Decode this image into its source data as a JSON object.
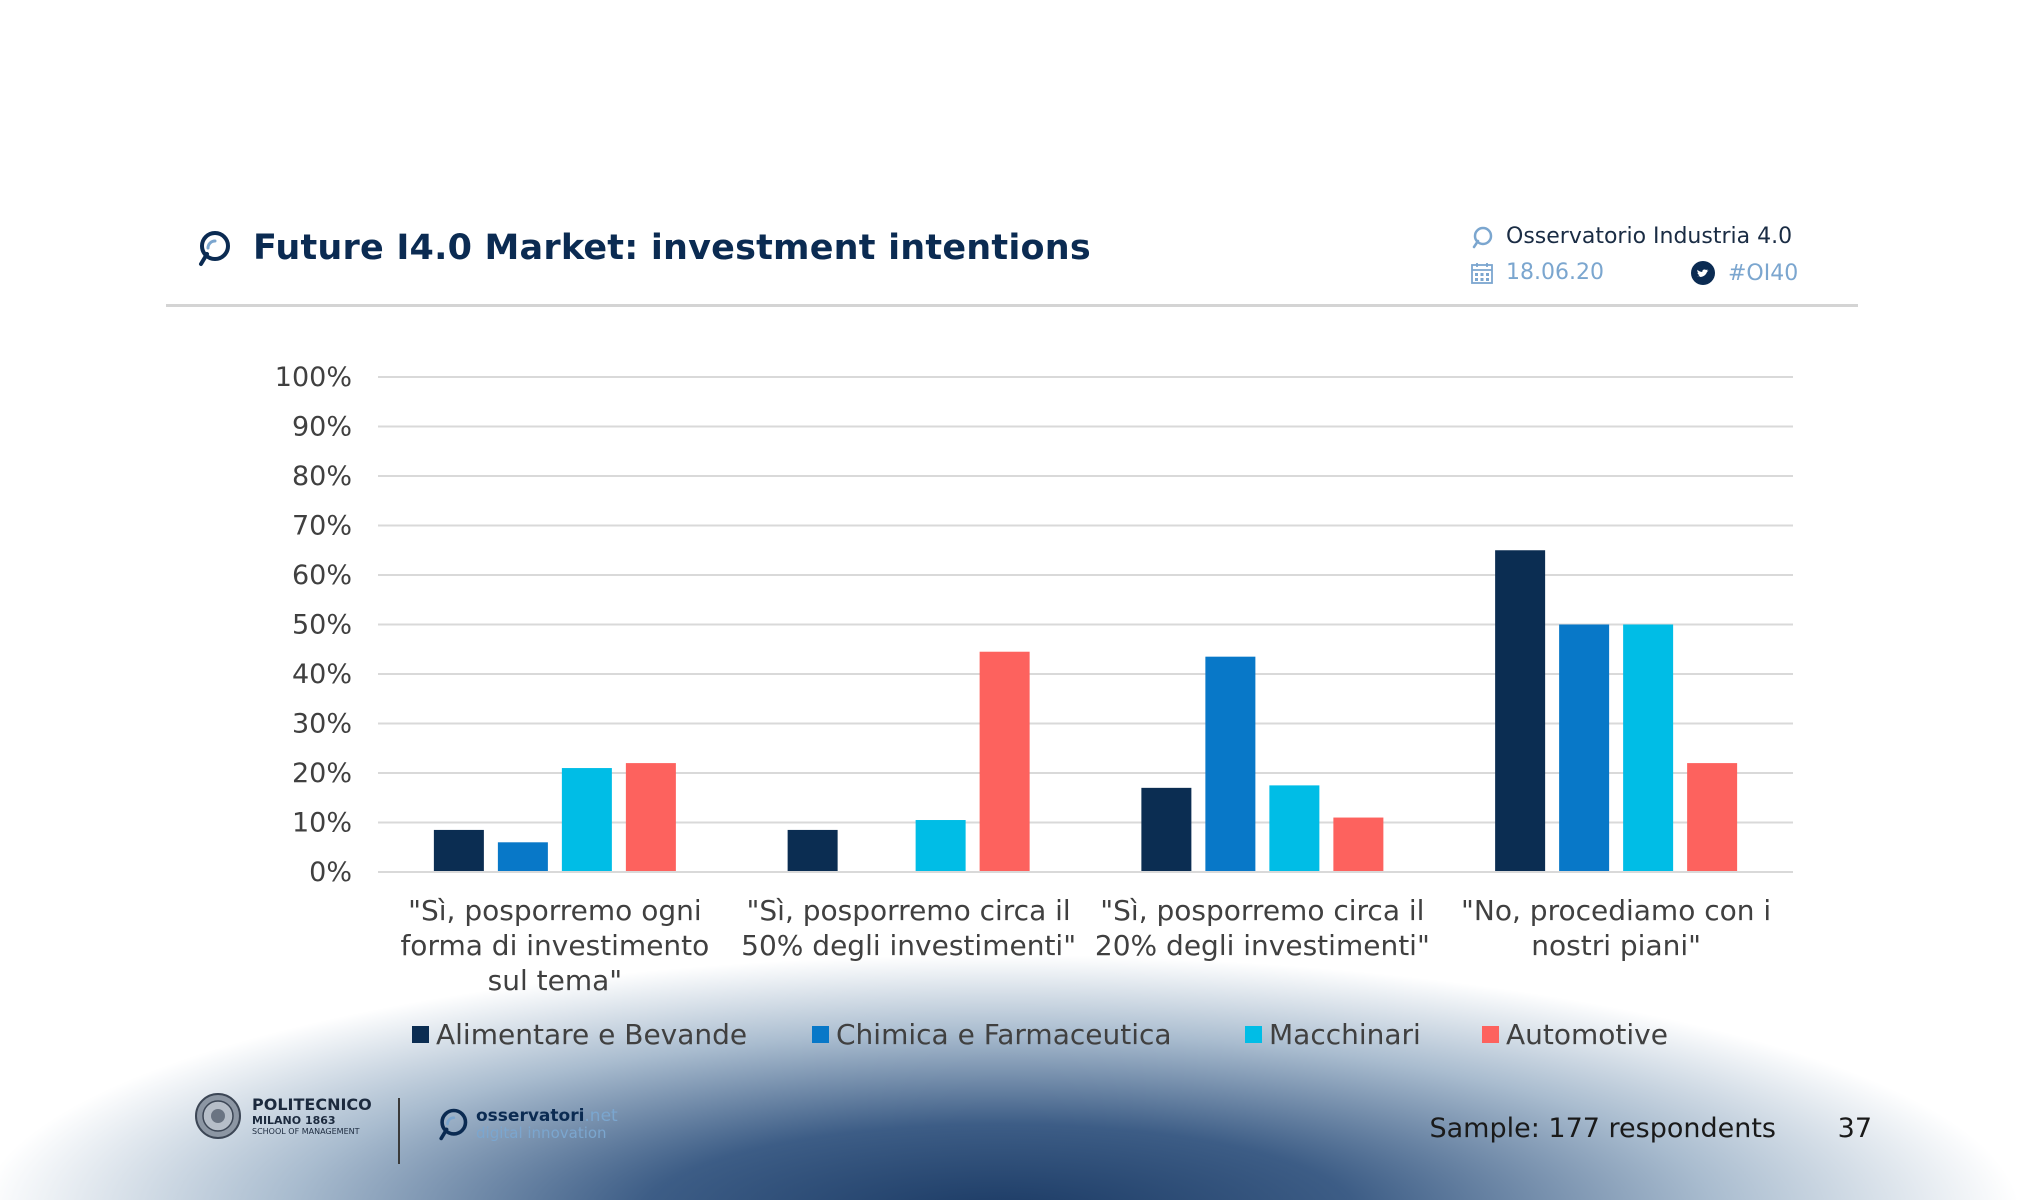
{
  "header": {
    "title": "Future I4.0 Market: investment intentions",
    "organization": "Osservatorio Industria 4.0",
    "date": "18.06.20",
    "hashtag": "#OI40"
  },
  "footer": {
    "school_name": "POLITECNICO",
    "school_city": "MILANO 1863",
    "school_dept": "SCHOOL OF MANAGEMENT",
    "osservatori_name": "osservatori",
    "osservatori_suffix": ".net",
    "osservatori_sub": "digital innovation",
    "sample": "Sample: 177 respondents",
    "page": "37"
  },
  "chart_data": {
    "type": "bar",
    "title": "",
    "xlabel": "",
    "ylabel": "",
    "ylim": [
      0,
      100
    ],
    "yticks": [
      "0%",
      "10%",
      "20%",
      "30%",
      "40%",
      "50%",
      "60%",
      "70%",
      "80%",
      "90%",
      "100%"
    ],
    "grid": true,
    "legend": "bottom",
    "categories": [
      [
        "\"Sì, posporremo ogni",
        "forma di investimento",
        "sul tema\""
      ],
      [
        "\"Sì, posporremo circa il",
        "50% degli investimenti\""
      ],
      [
        "\"Sì, posporremo circa il",
        "20% degli investimenti\""
      ],
      [
        "\"No, procediamo con i",
        "nostri piani\""
      ]
    ],
    "series": [
      {
        "name": "Alimentare e Bevande",
        "color": "#0b2d52",
        "values": [
          8.5,
          8.5,
          17,
          65
        ]
      },
      {
        "name": "Chimica e Farmaceutica",
        "color": "#0878c8",
        "values": [
          6,
          0,
          43.5,
          50
        ]
      },
      {
        "name": "Macchinari",
        "color": "#00bde6",
        "values": [
          21,
          10.5,
          17.5,
          50
        ]
      },
      {
        "name": "Automotive",
        "color": "#fd625e",
        "values": [
          22,
          44.5,
          11,
          22
        ]
      }
    ]
  }
}
